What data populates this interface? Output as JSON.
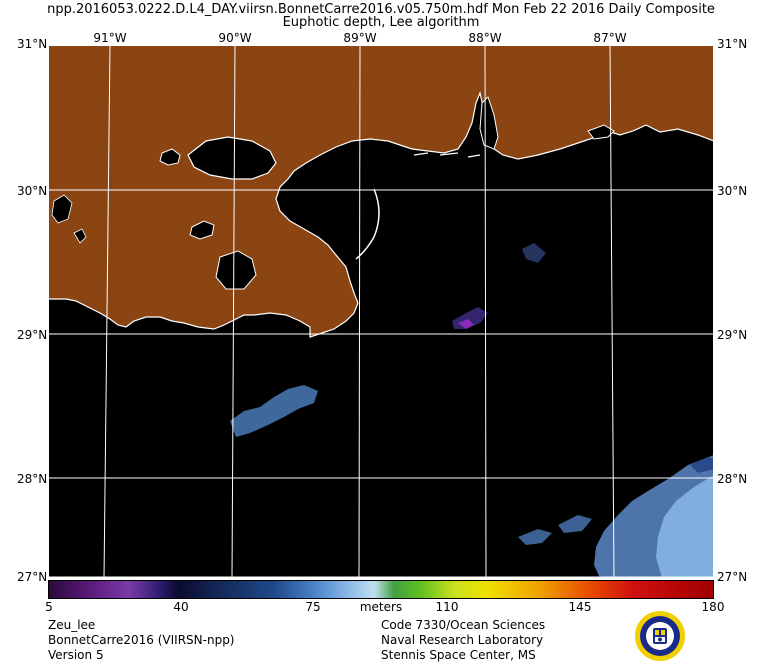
{
  "header": {
    "title_line1": "npp.2016053.0222.D.L4_DAY.viirsn.BonnetCarre2016.v05.750m.hdf    Mon Feb 22 2016 Daily Composite",
    "title_line2": "Euphotic depth, Lee algorithm"
  },
  "map": {
    "lon_labels": [
      "91°W",
      "90°W",
      "89°W",
      "88°W",
      "87°W"
    ],
    "lat_labels": [
      "31°N",
      "30°N",
      "29°N",
      "28°N",
      "27°N"
    ],
    "colors": {
      "land": "#8B4513",
      "ocean": "#000000",
      "coast": "#ffffff",
      "grid": "#ffffff"
    }
  },
  "colorbar": {
    "ticks": [
      "5",
      "40",
      "75",
      "110",
      "145",
      "180"
    ],
    "units_label": "meters",
    "range": [
      5,
      180
    ]
  },
  "footer": {
    "product": "Zeu_lee",
    "dataset": "BonnetCarre2016 (VIIRSN-npp)",
    "version": "Version 5",
    "org_line1": "Code 7330/Ocean Sciences",
    "org_line2": "Naval Research Laboratory",
    "org_line3": "Stennis Space Center, MS"
  }
}
